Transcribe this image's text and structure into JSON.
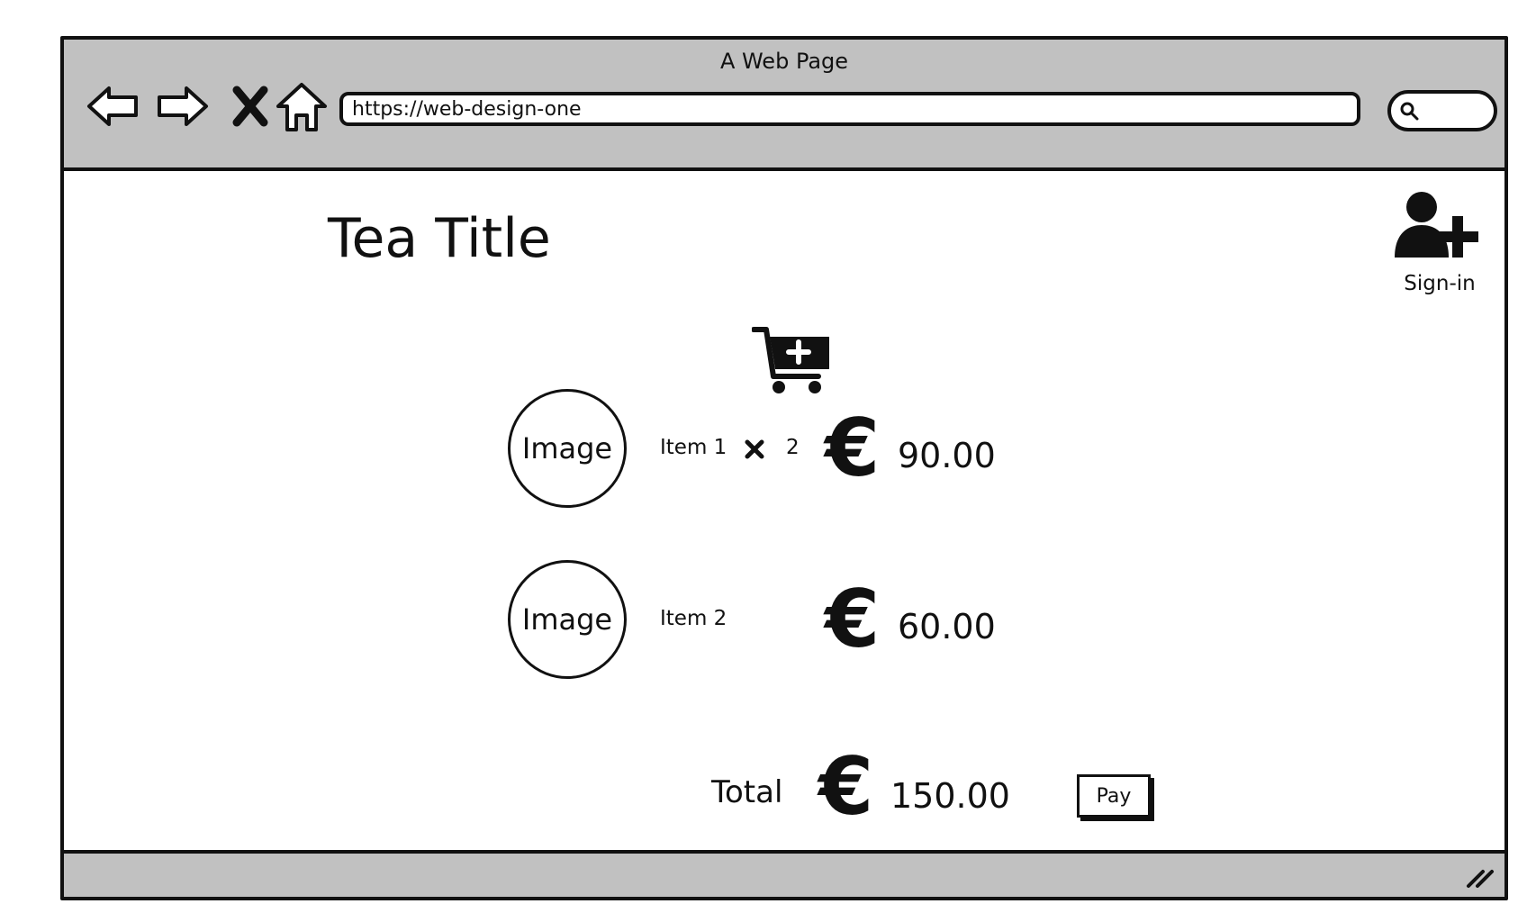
{
  "window": {
    "title": "A Web Page",
    "url": "https://web-design-one"
  },
  "page": {
    "title": "Tea Title",
    "signin_label": "Sign-in"
  },
  "cart": {
    "items": [
      {
        "image_label": "Image",
        "name": "Item 1",
        "quantity": "2",
        "currency_symbol": "€",
        "price": "90.00"
      },
      {
        "image_label": "Image",
        "name": "Item 2",
        "currency_symbol": "€",
        "price": "60.00"
      }
    ],
    "total_label": "Total",
    "total_currency_symbol": "€",
    "total_price": "150.00",
    "pay_label": "Pay"
  },
  "icons": {
    "back": "arrow-left-icon",
    "forward": "arrow-right-icon",
    "stop": "close-icon",
    "home": "home-icon",
    "search": "search-icon",
    "signin": "user-add-icon",
    "cart": "cart-add-icon",
    "quantity": "multiply-icon",
    "resize": "resize-handle-icon"
  },
  "colors": {
    "chrome": "#c1c1c1",
    "ink": "#111111",
    "background": "#ffffff"
  }
}
